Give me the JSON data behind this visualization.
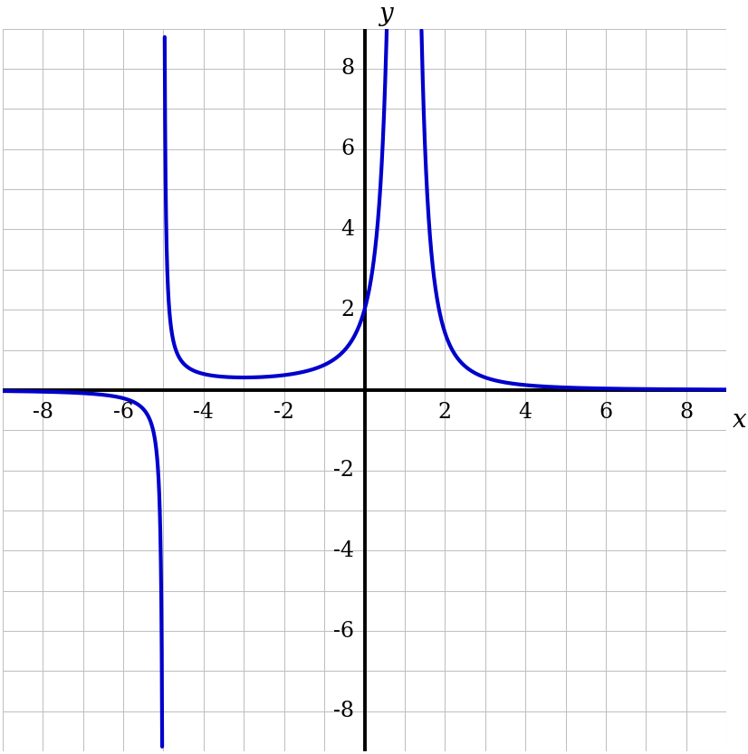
{
  "title": "",
  "xlim": [
    -9,
    9
  ],
  "ylim": [
    -9,
    9
  ],
  "xticks": [
    -8,
    -6,
    -4,
    -2,
    2,
    4,
    6,
    8
  ],
  "yticks": [
    -8,
    -6,
    -4,
    -2,
    2,
    4,
    6,
    8
  ],
  "curve_color": "#0000cc",
  "curve_linewidth": 3.0,
  "axis_color": "#000000",
  "grid_color": "#c0c0c0",
  "background_color": "#ffffff",
  "asymptote1": -5,
  "asymptote2": 1,
  "scale": 10,
  "xlabel": "x",
  "ylabel": "y",
  "tick_fontsize": 17,
  "label_fontsize": 20
}
